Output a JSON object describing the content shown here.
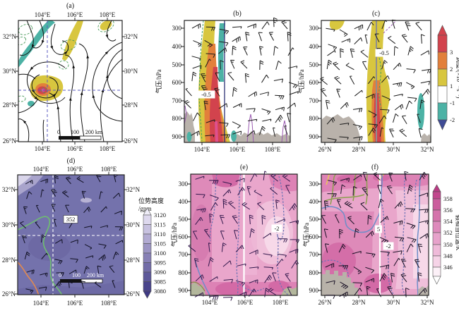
{
  "figure_title": "",
  "chart_data": [
    {
      "id": "a",
      "type": "map",
      "title": "(a)",
      "x_axis": {
        "ticks": [
          "104°E",
          "106°E",
          "108°E"
        ],
        "sides": [
          "top",
          "bottom"
        ]
      },
      "y_axis": {
        "ticks": [
          "32°N",
          "30°N",
          "28°N",
          "26°N"
        ],
        "sides": [
          "left",
          "right"
        ]
      },
      "features": {
        "streamlines": "black streamlines with arrowheads, cyclonic vortex near 104.5°E, 29°N",
        "shading": [
          {
            "name": "positive-core",
            "colors": [
              "#d8c63f",
              "#e2803b",
              "#d2434d",
              "#cc4fa0"
            ],
            "location": "104-105.5°E, 28.5-29.5°N"
          },
          {
            "name": "yellow-band",
            "color": "#d8c63f",
            "location": "105-106°E, 30.5-32.5°N"
          },
          {
            "name": "teal-band",
            "color": "#4cb2a5",
            "location": "103-104.6°E, 30.5-32°N"
          },
          {
            "name": "teal-spot",
            "color": "#4cb2a5",
            "location": "103.8°E, 28.2°N"
          },
          {
            "name": "yellow-spot",
            "color": "#d8c63f",
            "location": "108.2°E, 32.4°N"
          }
        ],
        "crosshair": {
          "style": "blue dashed",
          "lon": "104.7°E",
          "lat": "29°N"
        },
        "dashed_contours": "green dashed ellipses"
      },
      "scalebar": {
        "labels": [
          "0",
          "100",
          "200 km"
        ]
      }
    },
    {
      "id": "b",
      "type": "cross-section",
      "title": "(b)",
      "x_axis": {
        "ticks": [
          "104°E",
          "106°E",
          "108°E"
        ]
      },
      "y_axis": {
        "label": "气压/hPa",
        "ticks": [
          "300",
          "400",
          "500",
          "600",
          "700",
          "800",
          "900"
        ]
      },
      "contour_labels": [
        {
          "text": "-0.5"
        }
      ],
      "features": {
        "wind_barbs": true,
        "shading": "vorticity column near 104.5°E from 900 to 300 hPa (yellow-orange-red), teal band 104.8-105.2°E 300-600 hPa, teal patches near surface",
        "terrain": "gray surface terrain",
        "lines": "dark vertical line at 104.5°E, green dashed contour, purple contour spikes near 800-900 hPa"
      }
    },
    {
      "id": "c",
      "type": "cross-section",
      "title": "(c)",
      "x_axis": {
        "ticks": [
          "26°N",
          "28°N",
          "30°N",
          "32°N"
        ]
      },
      "y_axis": {
        "label": "气压/hPa",
        "ticks": [
          "300",
          "400",
          "500",
          "600",
          "700",
          "800",
          "900"
        ]
      },
      "contour_labels": [
        {
          "text": "-0.5"
        }
      ],
      "colorbar": {
        "label": "涡度/(×10⁻⁴·s⁻¹)",
        "ticks": [
          "3",
          "2",
          "1",
          "-1",
          "-2"
        ],
        "colors": [
          "#d2434d",
          "#e2803b",
          "#d8c63f",
          "#ffffff",
          "#4cb2a5"
        ],
        "tip_top": "#d2434d",
        "tip_bottom": "#3f4b95"
      },
      "features": {
        "wind_barbs": true,
        "shading": "yellow column at 29°N full depth with red core 700-900 hPa, teal patch near 31.8°N 650-850 hPa",
        "terrain": "gray terrain 26-28°N and far right",
        "lines": "gray vertical line at 29°N, green dashed contour, purple dashed segment near top"
      }
    },
    {
      "id": "d",
      "type": "map",
      "title": "(d)",
      "x_axis": {
        "ticks": [
          "104°E",
          "106°E",
          "108°E"
        ],
        "sides": [
          "top",
          "bottom"
        ]
      },
      "y_axis": {
        "ticks": [
          "32°N",
          "30°N",
          "28°N",
          "26°N"
        ],
        "sides": [
          "left",
          "right"
        ]
      },
      "contour_labels": [
        {
          "text": "352"
        }
      ],
      "colorbar": {
        "label": "位势高度",
        "unit": "/gpm",
        "ticks": [
          "3120",
          "3115",
          "3110",
          "3105",
          "3100",
          "3095",
          "3090",
          "3085",
          "3080"
        ],
        "colors": [
          "#ded9ee",
          "#c8c2e0",
          "#b2abd2",
          "#9c95c4",
          "#8780b6",
          "#726ca8",
          "#5d589a",
          "#49448c"
        ],
        "tip_top": "#efedf8",
        "tip_bottom": "#3f3a84"
      },
      "features": {
        "wind_barbs": true,
        "shading": "geopotential height field, mostly 3100-3105 gpm, lighter in NW corner",
        "contours": "green contour labeled 352, orange contour in SW corner",
        "crosshair": {
          "style": "white dashed",
          "lon": "105°E",
          "lat": "29.4°N"
        }
      },
      "scalebar": {
        "labels": [
          "0",
          "100",
          "200 km"
        ]
      }
    },
    {
      "id": "e",
      "type": "cross-section",
      "title": "(e)",
      "x_axis": {
        "ticks": [
          "104°E",
          "106°E",
          "108°E"
        ]
      },
      "y_axis": {
        "label": "气压/hPa",
        "ticks": [
          "300",
          "400",
          "500",
          "600",
          "700",
          "800",
          "900"
        ]
      },
      "contour_labels": [
        {
          "text": "-2"
        }
      ],
      "features": {
        "wind_barbs": true,
        "shading": "equivalent potential temperature pink field, lighter mid-right, darker at edges and bottom",
        "lines": "blue-purple dashed contours, white vertical line near 105°E, blue solid line lower left, olive line at surface",
        "terrain": "small gray-green terrain at bottom corners"
      }
    },
    {
      "id": "f",
      "type": "cross-section",
      "title": "(f)",
      "x_axis": {
        "ticks": [
          "26°N",
          "28°N",
          "30°N",
          "32°N"
        ]
      },
      "y_axis": {
        "label": "气压/hPa",
        "ticks": [
          "300",
          "400",
          "500",
          "600",
          "700",
          "800",
          "900"
        ]
      },
      "contour_labels": [
        {
          "text": "5"
        },
        {
          "text": "-2"
        }
      ],
      "colorbar": {
        "label": "假相当位温/K",
        "ticks": [
          "358",
          "356",
          "354",
          "352",
          "350",
          "348",
          "346"
        ],
        "colors": [
          "#c2478d",
          "#cb5d9d",
          "#d573ac",
          "#de8abc",
          "#e7a2cb",
          "#efbad9",
          "#f6d3e7",
          "#fcf0f7"
        ],
        "tip_top": "#b93b84",
        "tip_bottom": "#ffffff"
      },
      "features": {
        "wind_barbs": true,
        "shading": "pseudo-equivalent potential temperature pink field, deep magenta lower-left, lighter toward 31-32°N",
        "lines": "blue solid contour labeled 5, blue dashed contour labeled -2, olive-green and yellow contours near 300-400 hPa, white vertical line near 29.5°N",
        "terrain": "gray castellated terrain at lower left"
      }
    }
  ]
}
